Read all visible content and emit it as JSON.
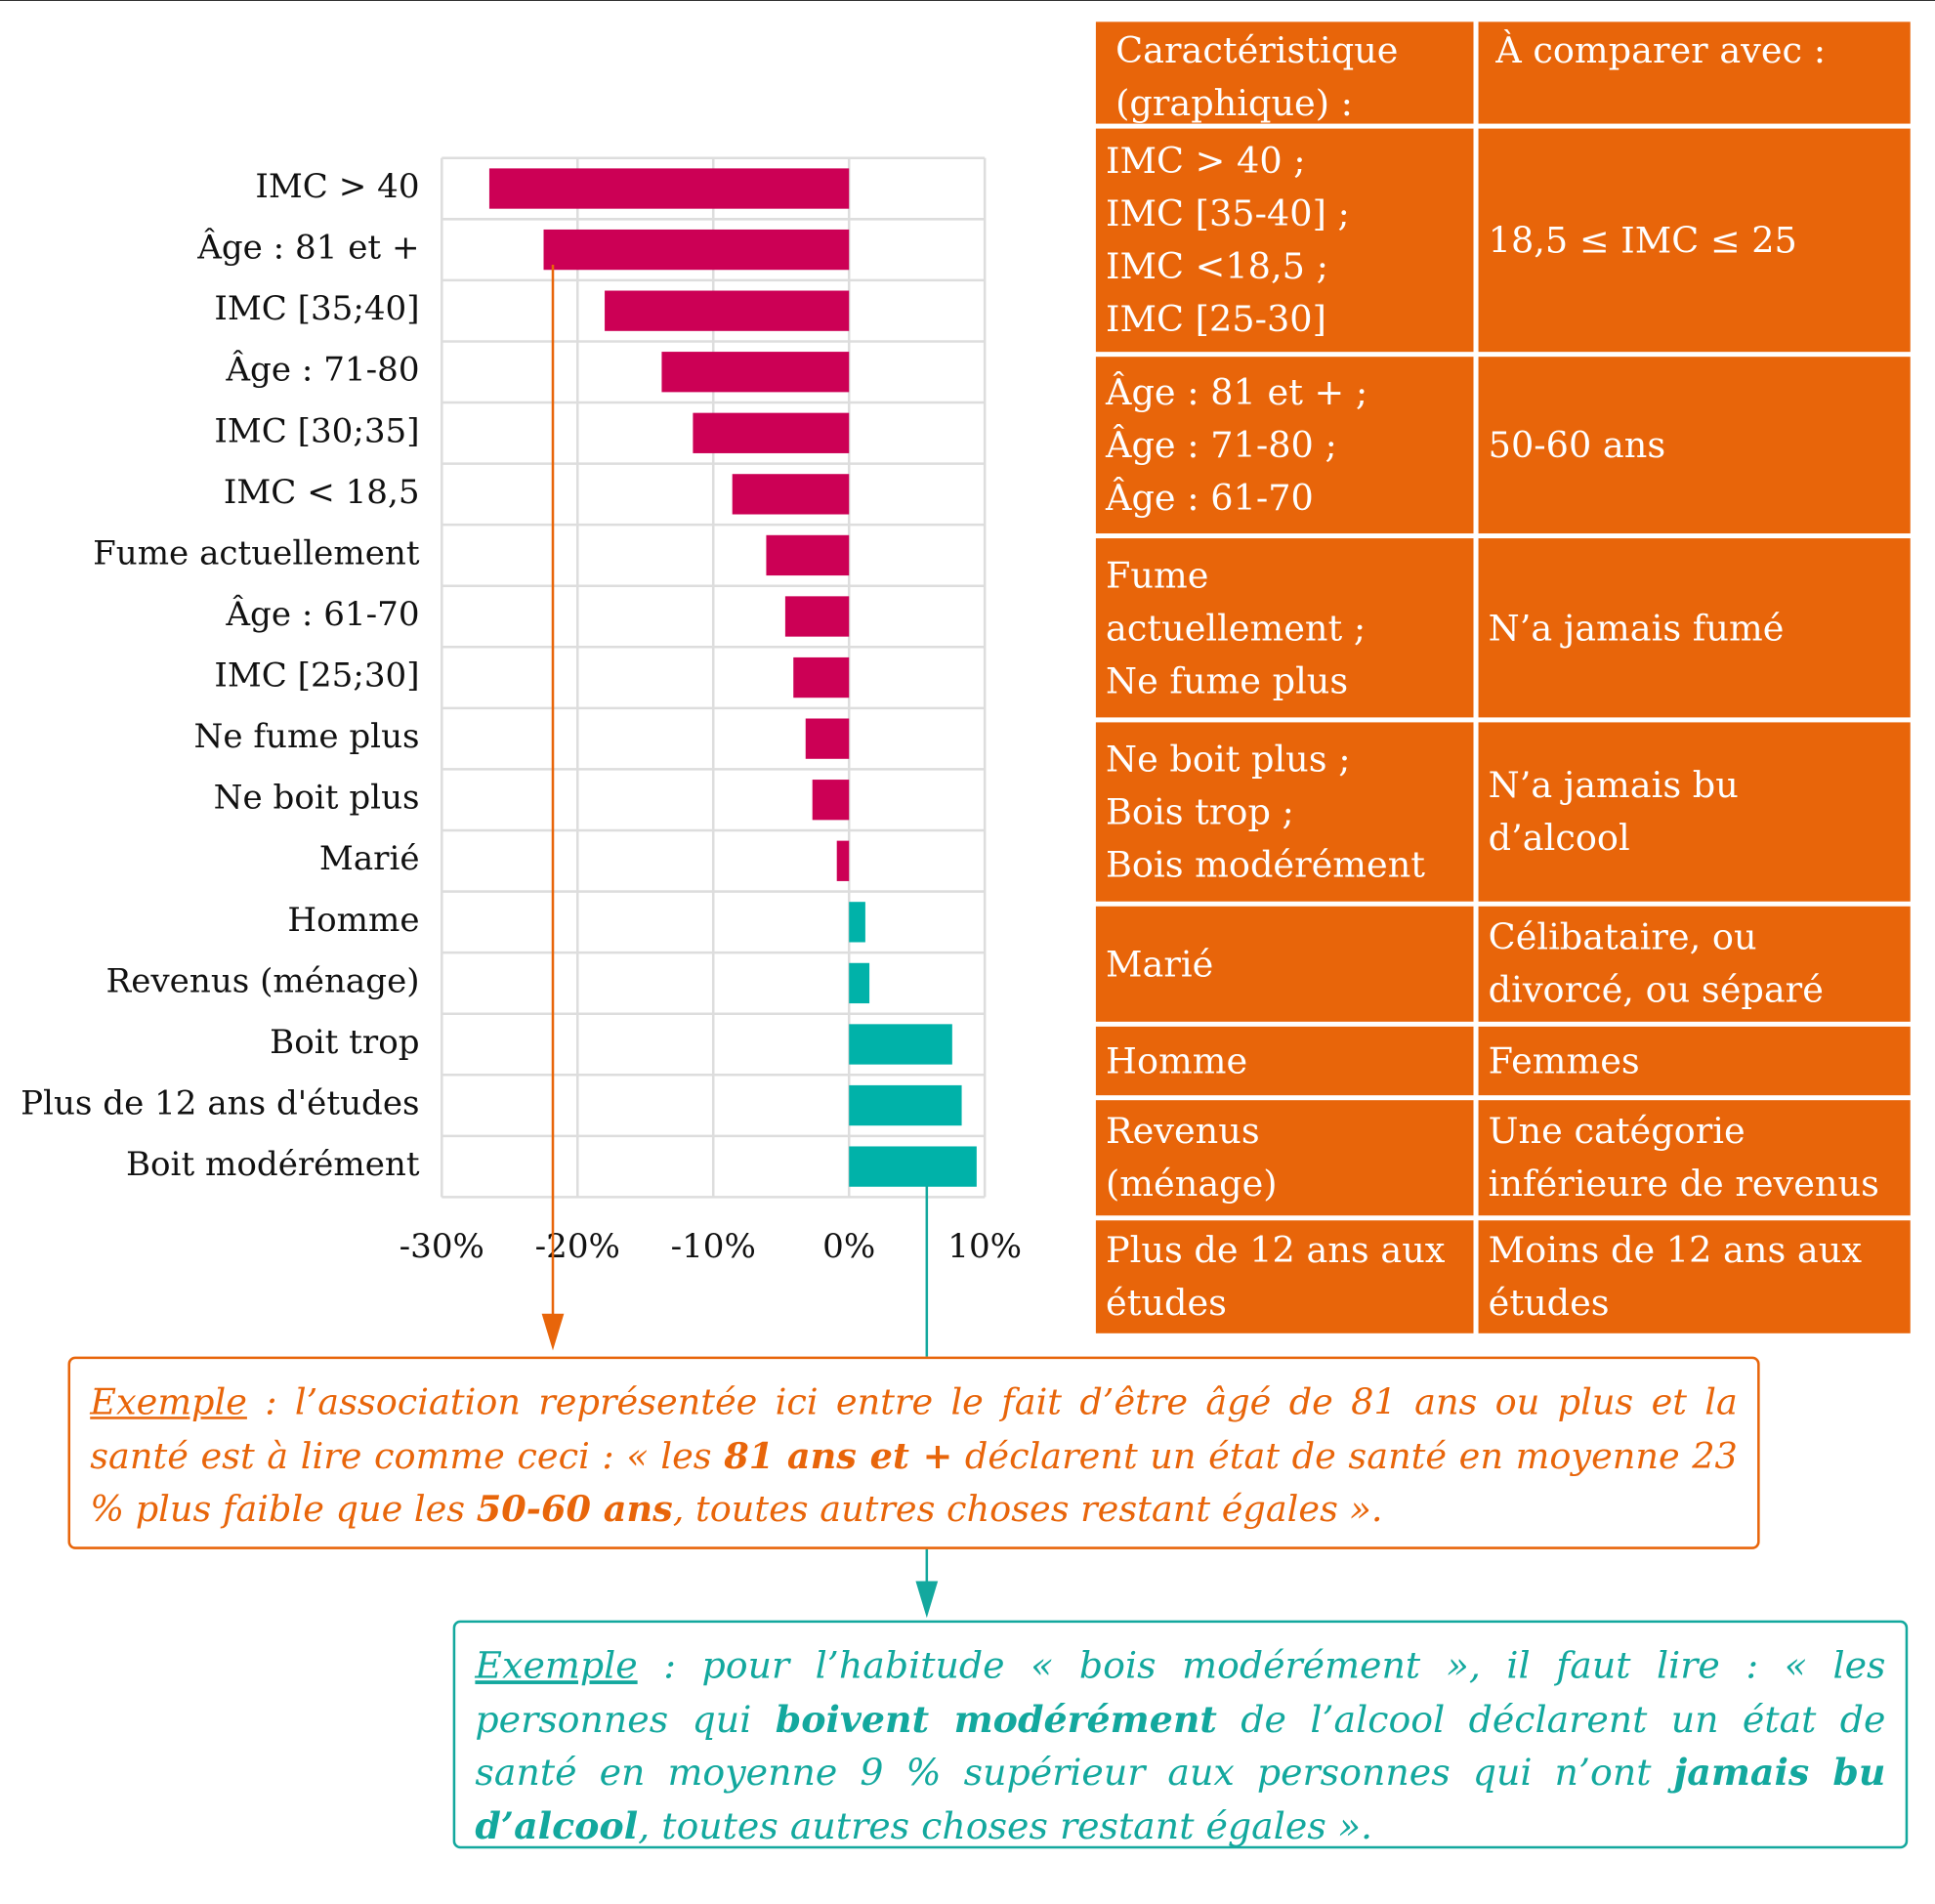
{
  "chart_data": {
    "type": "barh",
    "categories": [
      "IMC > 40",
      "Âge : 81 et +",
      "IMC [35;40]",
      "Âge : 71-80",
      "IMC [30;35]",
      "IMC < 18,5",
      "Fume actuellement",
      "Âge : 61-70",
      "IMC [25;30]",
      "Ne fume plus",
      "Ne boit plus",
      "Marié",
      "Homme",
      "Revenus (ménage)",
      "Boit trop",
      "Plus de 12 ans d'études",
      "Boit modérément"
    ],
    "values": [
      -26.5,
      -22.5,
      -18,
      -13.8,
      -11.5,
      -8.6,
      -6.1,
      -4.7,
      -4.1,
      -3.2,
      -2.7,
      -0.9,
      1.2,
      1.5,
      7.6,
      8.3,
      9.4
    ],
    "negative_color": "#cc0055",
    "positive_color": "#00b2a9",
    "xlim": [
      -30,
      10
    ],
    "xticks": [
      {
        "value": -30,
        "label": "-30%"
      },
      {
        "value": -20,
        "label": "-20%"
      },
      {
        "value": -10,
        "label": "-10%"
      },
      {
        "value": 0,
        "label": "0%"
      },
      {
        "value": 10,
        "label": "10%"
      }
    ],
    "grid": true
  },
  "table": {
    "header": [
      [
        "Caractéristique",
        "(graphique) :"
      ],
      [
        "À comparer avec :"
      ]
    ],
    "rows": [
      [
        [
          "IMC > 40 ;",
          "IMC [35-40] ;",
          "IMC <18,5 ;",
          "IMC [25-30]"
        ],
        [
          "18,5 ≤ IMC ≤ 25"
        ]
      ],
      [
        [
          "Âge : 81 et + ;",
          "Âge : 71-80 ;",
          "Âge : 61-70"
        ],
        [
          "50-60 ans"
        ]
      ],
      [
        [
          "Fume",
          "actuellement ;",
          "Ne fume plus"
        ],
        [
          "N’a jamais fumé"
        ]
      ],
      [
        [
          "Ne boit plus ;",
          "Bois trop ;",
          "Bois modérément"
        ],
        [
          "N’a jamais bu",
          "d’alcool"
        ]
      ],
      [
        [
          "Marié"
        ],
        [
          "Célibataire, ou",
          "divorcé, ou séparé"
        ]
      ],
      [
        [
          "Homme"
        ],
        [
          "Femmes"
        ]
      ],
      [
        [
          "Revenus",
          "(ménage)"
        ],
        [
          "Une catégorie",
          "inférieure de revenus"
        ]
      ],
      [
        [
          "Plus de 12 ans aux",
          "études"
        ],
        [
          "Moins de 12 ans aux",
          "études"
        ]
      ]
    ]
  },
  "notes": [
    {
      "color": "#e8650a",
      "segments": [
        {
          "text": "Exemple",
          "style": "underline"
        },
        {
          "text": " : l’association représentée ici entre le fait d’être âgé de 81 ans ou plus et la santé est à lire comme ceci : « les ",
          "style": "normal"
        },
        {
          "text": "81 ans et +",
          "style": "bold"
        },
        {
          "text": " déclarent un état de santé en moyenne 23 % plus faible que les ",
          "style": "normal"
        },
        {
          "text": "50-60 ans",
          "style": "bold"
        },
        {
          "text": ", toutes autres choses restant égales ».",
          "style": "normal"
        }
      ]
    },
    {
      "color": "#13a89e",
      "segments": [
        {
          "text": "Exemple",
          "style": "underline"
        },
        {
          "text": " : pour l’habitude « bois modérément », il faut lire : « les personnes qui ",
          "style": "normal"
        },
        {
          "text": "boivent modérément",
          "style": "bold"
        },
        {
          "text": " de l’alcool déclarent un état de santé en moyenne 9 % supérieur aux personnes qui n’ont ",
          "style": "normal"
        },
        {
          "text": "jamais bu d’alcool",
          "style": "bold"
        },
        {
          "text": ", toutes autres choses restant égales ».",
          "style": "normal"
        }
      ]
    }
  ]
}
